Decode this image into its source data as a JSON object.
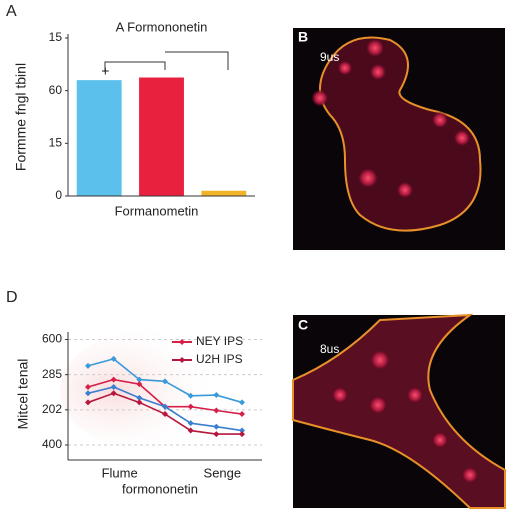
{
  "panels": {
    "a": "A",
    "b": "B",
    "c": "C",
    "d": "D",
    "b_caption": "9us",
    "c_caption": "8us"
  },
  "chart_data": [
    {
      "type": "bar",
      "title": "A Formononetin",
      "y_label": "Formme fngl tbinl",
      "x_label": "Formanometin",
      "categories": [
        null,
        null,
        null
      ],
      "values": [
        44,
        45,
        2
      ],
      "colors": [
        "#5bc0eb",
        "#e8213f",
        "#f0b429"
      ],
      "ylim": [
        0,
        60
      ],
      "yticks": [
        0,
        {
          "value": 20,
          "label": "15"
        },
        {
          "value": 40,
          "label": "60"
        },
        {
          "value": 60,
          "label": "15"
        }
      ],
      "annotations": [
        "+"
      ]
    },
    {
      "type": "line",
      "y_label": "Mitcel tenal",
      "x_label": "formononetin",
      "categories": [
        null,
        "Flume",
        null,
        null,
        null,
        "Senge",
        null
      ],
      "ylim": [
        -0.2,
        3.1
      ],
      "yticks": [
        {
          "value": 0,
          "label": "400"
        },
        {
          "value": 1,
          "label": "202"
        },
        {
          "value": 2,
          "label": "285"
        },
        {
          "value": 3,
          "label": "600"
        }
      ],
      "grid": true,
      "series": [
        {
          "color": "#3a9ad9",
          "values": [
            2.25,
            2.45,
            1.86,
            1.81,
            1.4,
            1.42,
            1.21
          ]
        },
        {
          "name": "NEY IPS",
          "color": "#d6204a",
          "values": [
            1.65,
            1.86,
            1.73,
            1.09,
            1.09,
            0.98,
            0.88
          ]
        },
        {
          "color": "#3a7fd0",
          "values": [
            1.47,
            1.65,
            1.34,
            1.09,
            0.62,
            0.52,
            0.41
          ]
        },
        {
          "name": "U2H IPS",
          "color": "#b5173d",
          "values": [
            1.21,
            1.47,
            1.21,
            0.88,
            0.41,
            0.31,
            0.31
          ]
        }
      ]
    }
  ]
}
